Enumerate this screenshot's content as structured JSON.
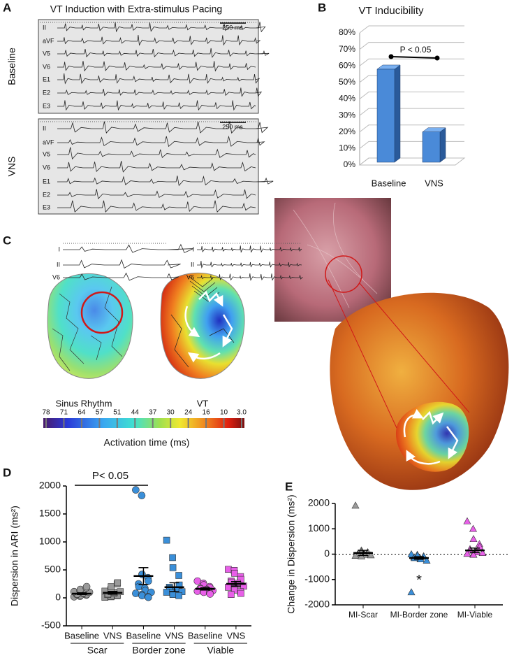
{
  "panels": {
    "a": {
      "letter": "A",
      "title": "VT Induction with Extra-stimulus Pacing",
      "rows": [
        {
          "label": "Baseline",
          "scale": "250 ms",
          "leads": [
            "II",
            "aVF",
            "V5",
            "V6",
            "E1",
            "E2",
            "E3"
          ]
        },
        {
          "label": "VNS",
          "scale": "250 ms",
          "leads": [
            "II",
            "aVF",
            "V5",
            "V6",
            "E1",
            "E2",
            "E3"
          ]
        }
      ]
    },
    "b": {
      "letter": "B"
    },
    "c": {
      "letter": "C",
      "maps": [
        {
          "label": "Sinus Rhythm",
          "leads": [
            "I",
            "II",
            "V6"
          ]
        },
        {
          "label": "VT",
          "leads": [
            "I",
            "II",
            "V6"
          ]
        }
      ],
      "colorbar": {
        "title": "Activation time (ms)",
        "ticks": [
          78,
          71,
          64,
          57,
          51,
          44,
          37,
          30,
          24,
          16,
          10,
          {
            "value": 3,
            "label": "3.0"
          }
        ]
      }
    },
    "d": {
      "letter": "D"
    },
    "e": {
      "letter": "E"
    }
  },
  "chart_data": [
    {
      "type": "bar3d",
      "title": "VT Inducibility",
      "categories": [
        "Baseline",
        "VNS"
      ],
      "values": [
        58,
        20
      ],
      "color": "#4a8ad8",
      "annotation": "P < 0.05",
      "grid": true,
      "ylim": [
        0,
        80
      ],
      "yticks": [
        {
          "value": 0,
          "label": "0%"
        },
        {
          "value": 10,
          "label": "10%"
        },
        {
          "value": 20,
          "label": "20%"
        },
        {
          "value": 30,
          "label": "30%"
        },
        {
          "value": 40,
          "label": "40%"
        },
        {
          "value": 50,
          "label": "50%"
        },
        {
          "value": 60,
          "label": "60%"
        },
        {
          "value": 70,
          "label": "70%"
        },
        {
          "value": 80,
          "label": "80%"
        }
      ]
    },
    {
      "type": "strip",
      "ylabel": "Dispersion in ARI (ms²)",
      "annotation": "P< 0.05",
      "categories": [
        "Baseline",
        "VNS",
        "Baseline",
        "VNS",
        "Baseline",
        "VNS"
      ],
      "groups": [
        "Scar",
        "Border zone",
        "Viable"
      ],
      "ylim": [
        -500,
        2000
      ],
      "yticks": [
        -500,
        0,
        500,
        1000,
        1500,
        2000
      ],
      "series": [
        {
          "color": "#9a9a9a",
          "marker": "circle",
          "mean": 75,
          "sem": 15,
          "values": [
            20,
            30,
            40,
            50,
            60,
            60,
            70,
            80,
            90,
            100,
            110,
            130,
            150,
            180,
            200
          ]
        },
        {
          "color": "#9a9a9a",
          "marker": "square",
          "mean": 90,
          "sem": 25,
          "values": [
            10,
            20,
            30,
            40,
            50,
            60,
            70,
            80,
            100,
            110,
            120,
            150,
            200,
            250,
            270
          ]
        },
        {
          "color": "#3a8fd9",
          "marker": "circle",
          "mean": 390,
          "sem": 150,
          "values": [
            1930,
            1830,
            420,
            360,
            300,
            250,
            200,
            170,
            130,
            100,
            80,
            60,
            40,
            20,
            10
          ]
        },
        {
          "color": "#3a8fd9",
          "marker": "square",
          "mean": 190,
          "sem": 80,
          "values": [
            1030,
            720,
            540,
            400,
            230,
            190,
            160,
            140,
            130,
            110,
            100,
            90,
            60,
            40
          ]
        },
        {
          "color": "#e85fe8",
          "marker": "circle",
          "mean": 160,
          "sem": 20,
          "values": [
            300,
            260,
            230,
            200,
            180,
            170,
            160,
            150,
            140,
            130,
            120,
            110,
            100,
            90,
            70
          ]
        },
        {
          "color": "#e85fe8",
          "marker": "square",
          "mean": 250,
          "sem": 40,
          "values": [
            510,
            490,
            440,
            380,
            330,
            300,
            280,
            260,
            240,
            210,
            190,
            170,
            140,
            110,
            80,
            60
          ]
        }
      ]
    },
    {
      "type": "strip",
      "ylabel": "Change in Dispersion (ms²)",
      "annotation": "*",
      "categories": [
        "MI-Scar",
        "MI-Border zone",
        "MI-Viable"
      ],
      "ylim": [
        -2000,
        2000
      ],
      "yticks": [
        -2000,
        -1000,
        0,
        1000,
        2000
      ],
      "zero_line": true,
      "series": [
        {
          "color": "#9a9a9a",
          "marker": "triangle",
          "mean": 50,
          "sem": 100,
          "values": [
            1920,
            150,
            100,
            80,
            60,
            40,
            20,
            0,
            -20,
            -40,
            -60,
            -80
          ]
        },
        {
          "color": "#3a8fd9",
          "marker": "triangle",
          "mean": -150,
          "sem": 50,
          "values": [
            0,
            -20,
            -50,
            -80,
            -100,
            -120,
            -150,
            -180,
            -200,
            -250,
            -1500
          ]
        },
        {
          "color": "#e85fe8",
          "marker": "triangle",
          "mean": 150,
          "sem": 90,
          "values": [
            1300,
            1000,
            600,
            400,
            300,
            200,
            150,
            100,
            80,
            50,
            20,
            0,
            -20
          ]
        }
      ]
    }
  ]
}
